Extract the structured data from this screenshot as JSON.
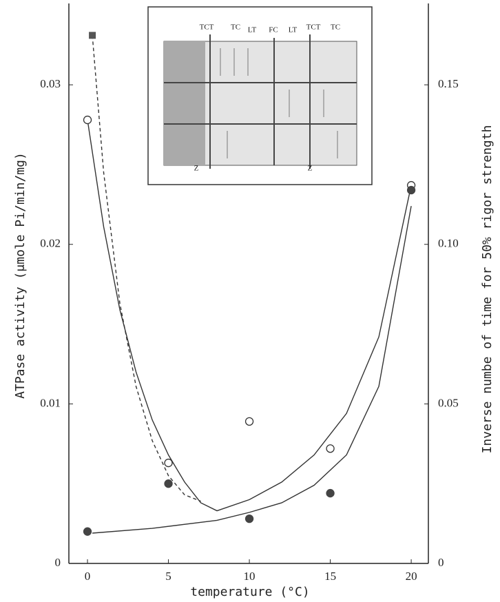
{
  "chart_data": {
    "type": "scatter",
    "xlabel": "temperature (°C)",
    "ylabel": "ATPase activity (μmole Pi/min/mg)",
    "y2label": "Inverse numbe of time for 50% rigor strength",
    "xlim": [
      -1.15,
      21.06
    ],
    "xticks": [
      0,
      5,
      10,
      15,
      20
    ],
    "ylim": [
      0,
      0.0351
    ],
    "yticks": [
      0,
      0.01,
      0.02,
      0.03
    ],
    "y2lim": [
      0,
      0.1755
    ],
    "y2ticks": [
      0,
      0.05,
      {
        "value": 0.1,
        "label": "0.10"
      },
      {
        "value": 0.15,
        "label": "0.15"
      }
    ],
    "inset_labels": [
      "TCT",
      "TC",
      "LT",
      "FC",
      "LT",
      "TCT",
      "TC",
      "Z",
      "Z"
    ],
    "series": [
      {
        "style": "solid",
        "color": "#333",
        "x": [
          0,
          1,
          2,
          3,
          4,
          5,
          6,
          7,
          8,
          10,
          12,
          14,
          16,
          18,
          20
        ],
        "values": [
          0.0278,
          0.0211,
          0.0159,
          0.012,
          0.009,
          0.0068,
          0.0051,
          0.0038,
          0.0033,
          0.004,
          0.0051,
          0.0068,
          0.0094,
          0.0142,
          0.0237
        ]
      },
      {
        "style": "solid",
        "color": "#333",
        "x": [
          0.3,
          4,
          8,
          10,
          12,
          14,
          16,
          18,
          20
        ],
        "values": [
          0.0019,
          0.0022,
          0.0027,
          0.0032,
          0.0038,
          0.0049,
          0.0068,
          0.0111,
          0.0224
        ]
      },
      {
        "style": "dashed",
        "color": "#333",
        "x": [
          0.3,
          1,
          2,
          3,
          4,
          5,
          6,
          7
        ],
        "values": [
          0.0331,
          0.0245,
          0.0163,
          0.0111,
          0.0077,
          0.0055,
          0.0043,
          0.0039
        ]
      },
      {
        "style": "open-circle",
        "color": "#333",
        "x": [
          0,
          5,
          10,
          15,
          20
        ],
        "values": [
          0.0278,
          0.0063,
          0.0089,
          0.0072,
          0.0237
        ]
      },
      {
        "style": "filled-circle",
        "color": "#444",
        "x": [
          0,
          5,
          10,
          15,
          20
        ],
        "values": [
          0.002,
          0.005,
          0.0028,
          0.0044,
          0.0234
        ]
      },
      {
        "style": "square",
        "color": "#555",
        "x": [
          0.3
        ],
        "values": [
          0.0331
        ]
      }
    ]
  }
}
